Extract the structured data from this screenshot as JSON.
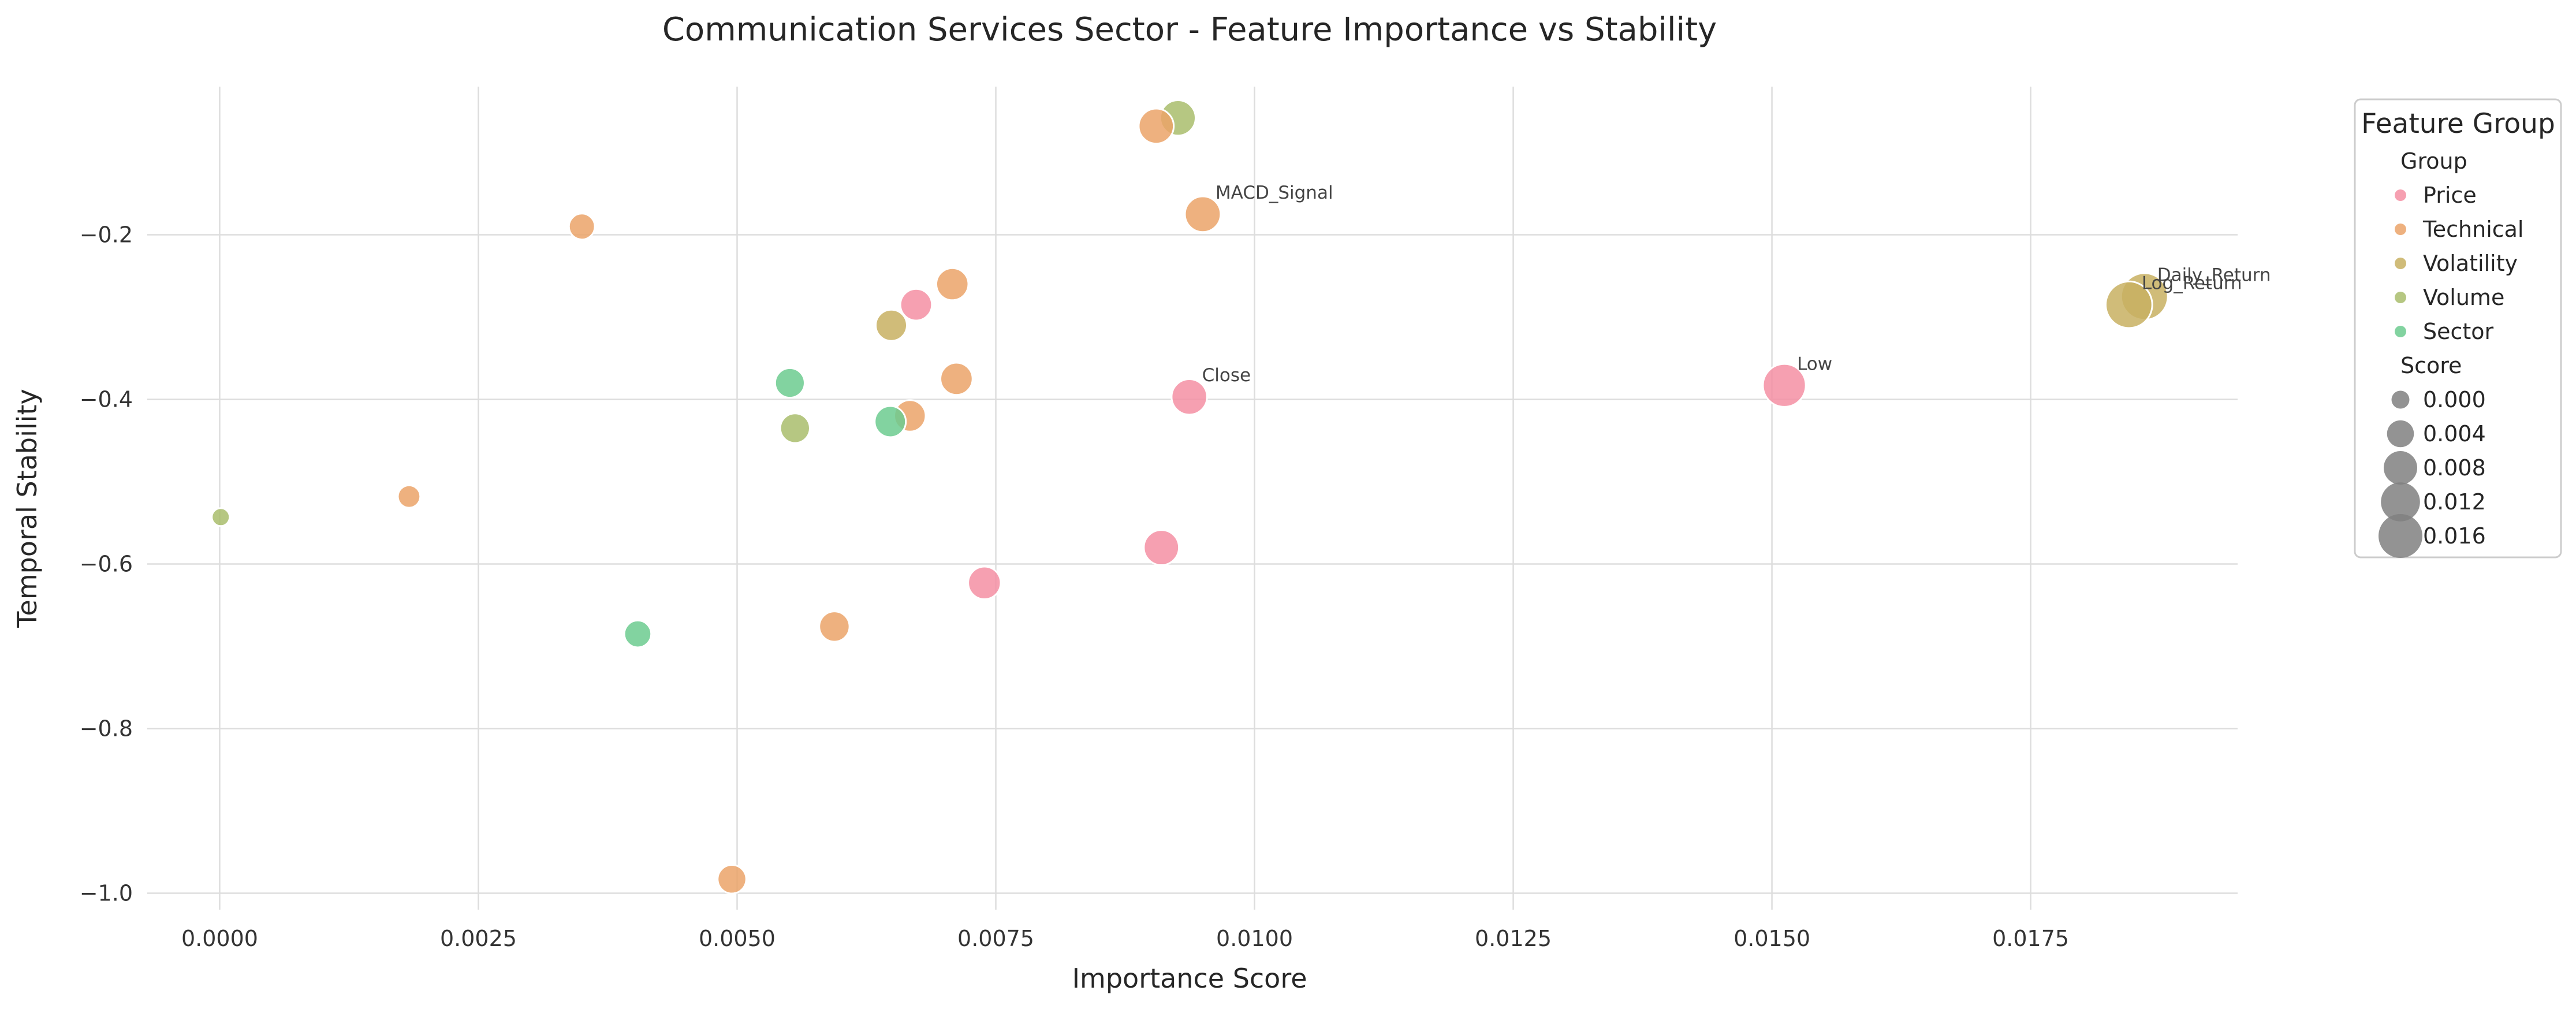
{
  "chart_data": {
    "type": "scatter",
    "title": "Communication Services Sector - Feature Importance vs Stability",
    "xlabel": "Importance Score",
    "ylabel": "Temporal Stability",
    "xlim": [
      -0.0007,
      0.0195
    ],
    "ylim": [
      -1.02,
      -0.02
    ],
    "x_ticks": [
      0.0,
      0.0025,
      0.005,
      0.0075,
      0.01,
      0.0125,
      0.015,
      0.0175
    ],
    "x_tick_labels": [
      "0.0000",
      "0.0025",
      "0.0050",
      "0.0075",
      "0.0100",
      "0.0125",
      "0.0150",
      "0.0175"
    ],
    "y_ticks": [
      -0.2,
      -0.4,
      -0.6,
      -0.8,
      -1.0
    ],
    "y_tick_labels": [
      "−0.2",
      "−0.4",
      "−0.6",
      "−0.8",
      "−1.0"
    ],
    "grid": true,
    "legend_placement": "outside-right-top",
    "colors": {
      "Price": "#f48fa3",
      "Technical": "#eba369",
      "Volatility": "#c8b062",
      "Volume": "#a9bd6c",
      "Sector": "#6ccb8f"
    },
    "points": [
      {
        "group": "Technical",
        "x": 0.00905,
        "y": -0.068,
        "score": 0.00905,
        "label": ""
      },
      {
        "group": "Volume",
        "x": 0.00926,
        "y": -0.058,
        "score": 0.00926,
        "label": ""
      },
      {
        "group": "Technical",
        "x": 0.0095,
        "y": -0.175,
        "score": 0.0095,
        "label": "MACD_Signal"
      },
      {
        "group": "Technical",
        "x": 0.0035,
        "y": -0.19,
        "score": 0.0035,
        "label": ""
      },
      {
        "group": "Technical",
        "x": 0.00708,
        "y": -0.26,
        "score": 0.00708,
        "label": ""
      },
      {
        "group": "Price",
        "x": 0.00673,
        "y": -0.285,
        "score": 0.00673,
        "label": ""
      },
      {
        "group": "Volatility",
        "x": 0.00649,
        "y": -0.31,
        "score": 0.00649,
        "label": ""
      },
      {
        "group": "Technical",
        "x": 0.00712,
        "y": -0.375,
        "score": 0.00712,
        "label": ""
      },
      {
        "group": "Sector",
        "x": 0.00551,
        "y": -0.38,
        "score": 0.00551,
        "label": ""
      },
      {
        "group": "Price",
        "x": 0.00937,
        "y": -0.397,
        "score": 0.00937,
        "label": "Close"
      },
      {
        "group": "Technical",
        "x": 0.00667,
        "y": -0.42,
        "score": 0.00667,
        "label": ""
      },
      {
        "group": "Sector",
        "x": 0.00648,
        "y": -0.427,
        "score": 0.00648,
        "label": ""
      },
      {
        "group": "Volume",
        "x": 0.00556,
        "y": -0.435,
        "score": 0.00556,
        "label": ""
      },
      {
        "group": "Technical",
        "x": 0.00183,
        "y": -0.518,
        "score": 0.00183,
        "label": ""
      },
      {
        "group": "Volume",
        "x": 1e-05,
        "y": -0.543,
        "score": 1e-05,
        "label": ""
      },
      {
        "group": "Price",
        "x": 0.0091,
        "y": -0.58,
        "score": 0.0091,
        "label": ""
      },
      {
        "group": "Price",
        "x": 0.00739,
        "y": -0.623,
        "score": 0.00739,
        "label": ""
      },
      {
        "group": "Technical",
        "x": 0.00594,
        "y": -0.676,
        "score": 0.00594,
        "label": ""
      },
      {
        "group": "Sector",
        "x": 0.00404,
        "y": -0.685,
        "score": 0.00404,
        "label": ""
      },
      {
        "group": "Technical",
        "x": 0.00495,
        "y": -0.983,
        "score": 0.00495,
        "label": ""
      },
      {
        "group": "Price",
        "x": 0.01512,
        "y": -0.383,
        "score": 0.01512,
        "label": "Low"
      },
      {
        "group": "Volatility",
        "x": 0.01845,
        "y": -0.285,
        "score": 0.01845,
        "label": "Log_Return"
      },
      {
        "group": "Volatility",
        "x": 0.0186,
        "y": -0.275,
        "score": 0.0186,
        "label": "Daily_Return"
      }
    ],
    "legend": {
      "title": "Feature Group",
      "group_heading": "Group",
      "groups": [
        "Price",
        "Technical",
        "Volatility",
        "Volume",
        "Sector"
      ],
      "size_heading": "Score",
      "size_values": [
        0.0,
        0.004,
        0.008,
        0.012,
        0.016
      ],
      "size_labels": [
        "0.000",
        "0.004",
        "0.008",
        "0.012",
        "0.016"
      ],
      "size_color": "#808080"
    }
  }
}
